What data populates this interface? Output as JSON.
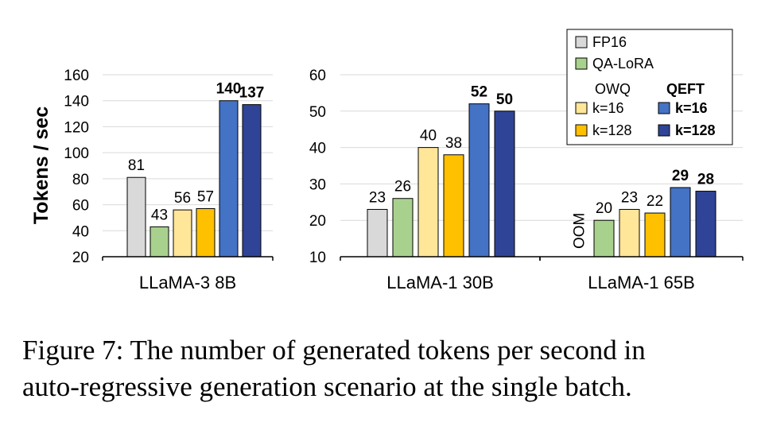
{
  "ylabel": "Tokens / sec",
  "caption": {
    "line1": "Figure 7: The number of generated tokens per second in",
    "line2": "auto-regressive generation scenario at the single batch."
  },
  "legend": {
    "fp16": "FP16",
    "qalora": "QA-LoRA",
    "owq_header": "OWQ",
    "qeft_header": "QEFT",
    "owq16": "k=16",
    "owq128": "k=128",
    "qeft16": "k=16",
    "qeft128": "k=128"
  },
  "colors": {
    "FP16": "#d9d9d9",
    "QA-LoRA": "#a9d18e",
    "OWQ k=16": "#ffe699",
    "OWQ k=128": "#ffc000",
    "QEFT k=16": "#4472c4",
    "QEFT k=128": "#2f4496"
  },
  "chart_data": [
    {
      "type": "bar",
      "xlabel": "LLaMA-3 8B",
      "ylim": [
        20,
        160
      ],
      "yticks": [
        20,
        40,
        60,
        80,
        100,
        120,
        140,
        160
      ],
      "series": [
        {
          "name": "FP16",
          "value": 81,
          "label": "81",
          "bold": false
        },
        {
          "name": "QA-LoRA",
          "value": 43,
          "label": "43",
          "bold": false
        },
        {
          "name": "OWQ k=16",
          "value": 56,
          "label": "56",
          "bold": false
        },
        {
          "name": "OWQ k=128",
          "value": 57,
          "label": "57",
          "bold": false
        },
        {
          "name": "QEFT k=16",
          "value": 140,
          "label": "140",
          "bold": true
        },
        {
          "name": "QEFT k=128",
          "value": 137,
          "label": "137",
          "bold": true
        }
      ]
    },
    {
      "type": "bar",
      "xlabel": "LLaMA-1 30B",
      "ylim": [
        10,
        60
      ],
      "yticks": [
        10,
        20,
        30,
        40,
        50,
        60
      ],
      "series": [
        {
          "name": "FP16",
          "value": 23,
          "label": "23",
          "bold": false
        },
        {
          "name": "QA-LoRA",
          "value": 26,
          "label": "26",
          "bold": false
        },
        {
          "name": "OWQ k=16",
          "value": 40,
          "label": "40",
          "bold": false
        },
        {
          "name": "OWQ k=128",
          "value": 38,
          "label": "38",
          "bold": false
        },
        {
          "name": "QEFT k=16",
          "value": 52,
          "label": "52",
          "bold": true
        },
        {
          "name": "QEFT k=128",
          "value": 50,
          "label": "50",
          "bold": true
        }
      ]
    },
    {
      "type": "bar",
      "xlabel": "LLaMA-1 65B",
      "ylim": [
        10,
        60
      ],
      "yticks": [
        10,
        20,
        30,
        40,
        50,
        60
      ],
      "series": [
        {
          "name": "FP16",
          "value": null,
          "label": "OOM",
          "bold": false
        },
        {
          "name": "QA-LoRA",
          "value": 20,
          "label": "20",
          "bold": false
        },
        {
          "name": "OWQ k=16",
          "value": 23,
          "label": "23",
          "bold": false
        },
        {
          "name": "OWQ k=128",
          "value": 22,
          "label": "22",
          "bold": false
        },
        {
          "name": "QEFT k=16",
          "value": 29,
          "label": "29",
          "bold": true
        },
        {
          "name": "QEFT k=128",
          "value": 28,
          "label": "28",
          "bold": true
        }
      ]
    }
  ]
}
